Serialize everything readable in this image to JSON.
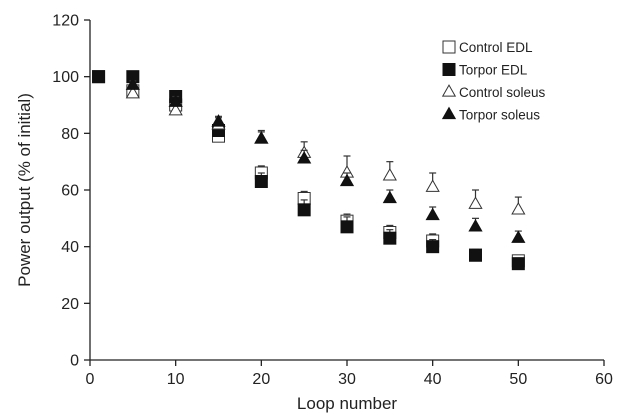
{
  "chart_data": {
    "type": "scatter",
    "title": "",
    "xlabel": "Loop number",
    "ylabel": "Power output (% of initial)",
    "xlim": [
      0,
      60
    ],
    "ylim": [
      0,
      120
    ],
    "xticks": [
      0,
      10,
      20,
      30,
      40,
      50,
      60
    ],
    "yticks": [
      0,
      20,
      40,
      60,
      80,
      100,
      120
    ],
    "grid": false,
    "legend_position": "top-right",
    "series": [
      {
        "name": "Control EDL",
        "marker": "square-open",
        "x": [
          1,
          5,
          10,
          15,
          20,
          25,
          30,
          35,
          40,
          45,
          50
        ],
        "y": [
          100,
          95,
          90,
          79,
          66,
          57,
          49,
          45,
          42,
          37,
          35
        ],
        "err": [
          0,
          1,
          1.5,
          2,
          2.5,
          2.5,
          2.5,
          2.5,
          2.5,
          2,
          2
        ]
      },
      {
        "name": "Torpor EDL",
        "marker": "square-filled",
        "x": [
          1,
          5,
          10,
          15,
          20,
          25,
          30,
          35,
          40,
          45,
          50
        ],
        "y": [
          100,
          100,
          93,
          81,
          63,
          53,
          47,
          43,
          40,
          37,
          34
        ],
        "err": [
          0,
          0,
          1,
          2,
          3,
          3.5,
          3.5,
          3,
          2.5,
          2,
          2
        ]
      },
      {
        "name": "Control soleus",
        "marker": "triangle-open",
        "x": [
          5,
          10,
          15,
          20,
          25,
          30,
          35,
          40,
          45,
          50
        ],
        "y": [
          94,
          88,
          83,
          78,
          73,
          66,
          65,
          61,
          55,
          53
        ],
        "err": [
          2,
          2,
          2.5,
          3,
          4,
          6,
          5,
          5,
          5,
          4.5
        ]
      },
      {
        "name": "Torpor soleus",
        "marker": "triangle-filled",
        "x": [
          5,
          10,
          15,
          20,
          25,
          30,
          35,
          40,
          45,
          50
        ],
        "y": [
          97,
          91,
          84,
          78,
          71,
          63,
          57,
          51,
          47,
          43
        ],
        "err": [
          1.5,
          2,
          2,
          2.5,
          3,
          3,
          3,
          3,
          3,
          2.5
        ]
      }
    ]
  }
}
